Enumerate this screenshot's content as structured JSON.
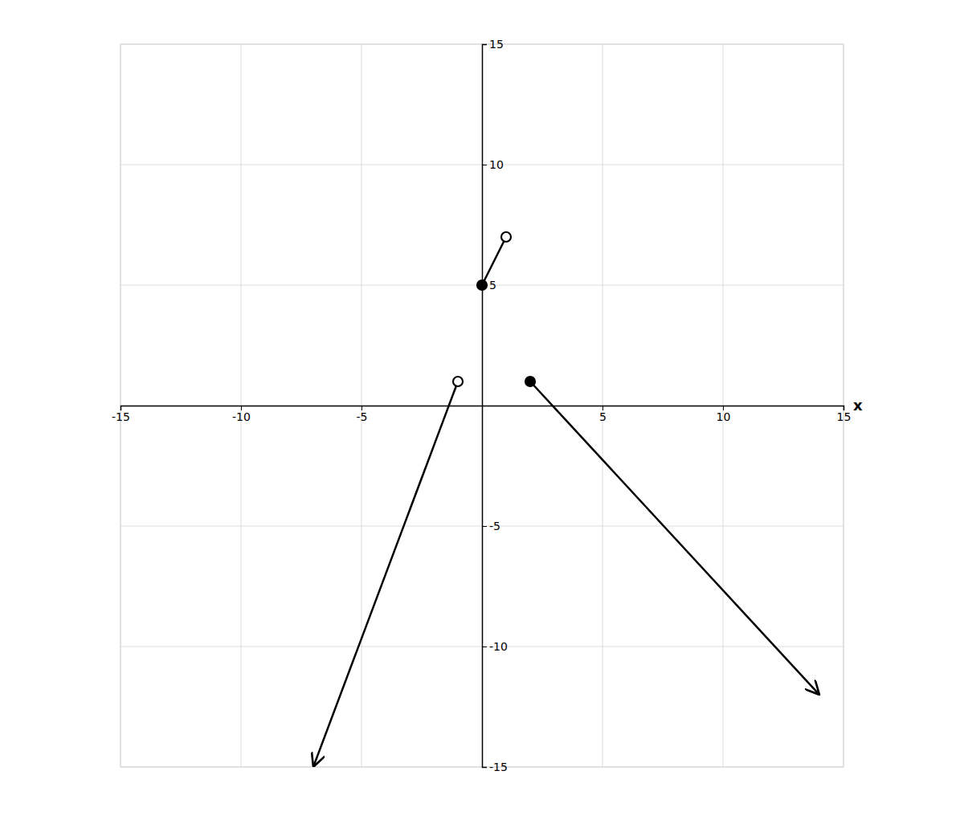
{
  "chart_data": {
    "type": "line",
    "xlim": [
      -15,
      15
    ],
    "ylim": [
      -15,
      15
    ],
    "xticks": [
      -15,
      -10,
      -5,
      5,
      10,
      15
    ],
    "yticks": [
      15,
      10,
      5,
      -5,
      -10,
      -15
    ],
    "x_label": "x",
    "grid": true,
    "series": [
      {
        "type": "line",
        "x": [
          0,
          1
        ],
        "values": [
          5,
          7
        ],
        "color": "#000000"
      },
      {
        "type": "line",
        "x": [
          -1,
          -7
        ],
        "values": [
          1,
          -15
        ],
        "color": "#000000",
        "marker": "arrow"
      },
      {
        "type": "line",
        "x": [
          2,
          14
        ],
        "values": [
          1,
          -12
        ],
        "color": "#000000",
        "marker": "arrow"
      },
      {
        "type": "scatter",
        "x": [
          0,
          2
        ],
        "values": [
          5,
          1
        ],
        "color": "#000000",
        "marker": "filled-circle"
      },
      {
        "type": "scatter",
        "x": [
          1,
          -1
        ],
        "values": [
          7,
          1
        ],
        "color": "#000000",
        "marker": "open-circle"
      }
    ]
  }
}
